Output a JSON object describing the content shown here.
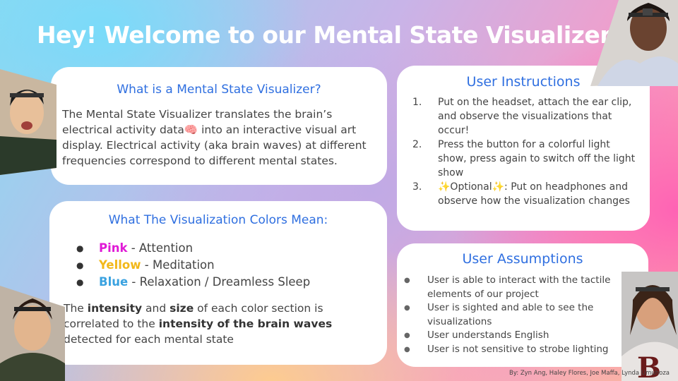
{
  "title": "Hey! Welcome to our  Mental State Visualizer 😊",
  "what": {
    "heading": "What is a  Mental State Visualizer?",
    "body": "The  Mental State Visualizer translates the brain’s electrical activity data🧠 into an interactive visual art display.  Electrical activity (aka brain waves) at different frequencies correspond to different mental states."
  },
  "colors": {
    "heading": "What The Visualization Colors  Mean:",
    "items": [
      {
        "keyword": "Pink",
        "rest": " - Attention",
        "color": "#e01ad6"
      },
      {
        "keyword": "Yellow",
        "rest": " -  Meditation",
        "color": "#f2b81a"
      },
      {
        "keyword": "Blue",
        "rest": " -  Relaxation /  Dreamless Sleep",
        "color": "#3aa2e0"
      }
    ],
    "desc": {
      "p1": "The ",
      "b1": "intensity",
      "p2": " and ",
      "b2": "size",
      "p3": " of each color section is correlated to the ",
      "b3": "intensity of the brain waves",
      "p4": " detected for each mental state"
    }
  },
  "instructions": {
    "heading": "User  Instructions",
    "items": [
      {
        "num": "1.",
        "text": "Put on the headset, attach the ear clip, and observe the visualizations that occur!"
      },
      {
        "num": "2.",
        "text": "Press the button for a colorful light show, press again to switch off the light show"
      },
      {
        "num": "3.",
        "text": "✨Optional✨:  Put on headphones and observe how the visualization changes"
      }
    ]
  },
  "assumptions": {
    "heading": "User Assumptions",
    "items": [
      "User is able to interact with the tactile elements of our project",
      "User is sighted and able to see the visualizations",
      "User understands  English",
      "User is not sensitive to strobe lighting"
    ]
  },
  "credits": "By: Zyn Ang,  Haley Flores, Joe  Maffa,  Lynda Umuhoza",
  "icons": [
    "person-photo-topleft",
    "person-photo-topright",
    "person-photo-bottomleft",
    "person-photo-bottomright"
  ]
}
